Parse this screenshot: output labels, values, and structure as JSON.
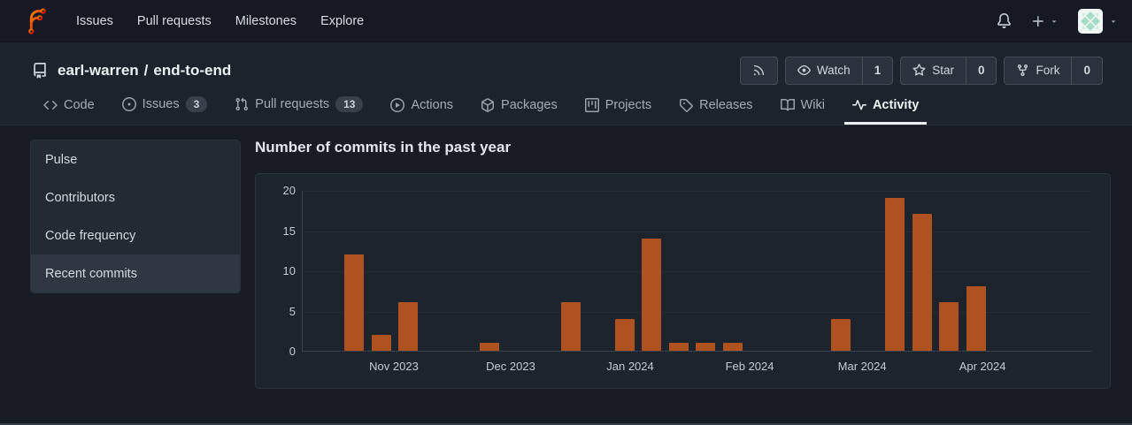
{
  "navbar": {
    "links": [
      {
        "label": "Issues"
      },
      {
        "label": "Pull requests"
      },
      {
        "label": "Milestones"
      },
      {
        "label": "Explore"
      }
    ]
  },
  "repo_header": {
    "owner": "earl-warren",
    "separator": "/",
    "name": "end-to-end"
  },
  "repo_actions": {
    "watch": {
      "label": "Watch",
      "count": "1"
    },
    "star": {
      "label": "Star",
      "count": "0"
    },
    "fork": {
      "label": "Fork",
      "count": "0"
    }
  },
  "tabs": [
    {
      "label": "Code"
    },
    {
      "label": "Issues",
      "badge": "3"
    },
    {
      "label": "Pull requests",
      "badge": "13"
    },
    {
      "label": "Actions"
    },
    {
      "label": "Packages"
    },
    {
      "label": "Projects"
    },
    {
      "label": "Releases"
    },
    {
      "label": "Wiki"
    },
    {
      "label": "Activity",
      "active": true
    }
  ],
  "sidebar": {
    "items": [
      {
        "label": "Pulse"
      },
      {
        "label": "Contributors"
      },
      {
        "label": "Code frequency"
      },
      {
        "label": "Recent commits",
        "active": true
      }
    ]
  },
  "main": {
    "title": "Number of commits in the past year"
  },
  "chart_data": {
    "type": "bar",
    "title": "Number of commits in the past year",
    "x_unit": "week",
    "weeks": 30,
    "values": [
      0,
      0,
      12,
      2,
      6,
      0,
      0,
      1,
      0,
      0,
      6,
      0,
      4,
      14,
      1,
      1,
      1,
      0,
      0,
      0,
      4,
      0,
      19,
      17,
      6,
      8,
      0,
      0,
      0,
      0
    ],
    "y_ticks": [
      0,
      5,
      10,
      15,
      20
    ],
    "ylim": [
      0,
      20
    ],
    "month_labels": [
      {
        "label": "Nov 2023",
        "slot": 3.47
      },
      {
        "label": "Dec 2023",
        "slot": 7.79
      },
      {
        "label": "Jan 2024",
        "slot": 12.21
      },
      {
        "label": "Feb 2024",
        "slot": 16.63
      },
      {
        "label": "Mar 2024",
        "slot": 20.79
      },
      {
        "label": "Apr 2024",
        "slot": 25.24
      }
    ],
    "bar_color": "#b05220",
    "grid": true,
    "legend": false
  },
  "colors": {
    "bar": "#b05220",
    "navbar_bg": "#141923",
    "header_band_bg": "#1c232d",
    "body_bg": "#171c25",
    "card_bg": "#1c242e",
    "active_tab_underline": "#eceff2"
  },
  "icons": [
    "forgejo-logo",
    "bell-icon",
    "plus-icon",
    "caret-down-icon",
    "avatar",
    "repo-icon",
    "rss-icon",
    "eye-icon",
    "star-icon",
    "fork-icon",
    "code-icon",
    "issue-opened-icon",
    "pull-request-icon",
    "play-icon",
    "package-icon",
    "project-icon",
    "tag-icon",
    "book-icon",
    "pulse-icon"
  ]
}
